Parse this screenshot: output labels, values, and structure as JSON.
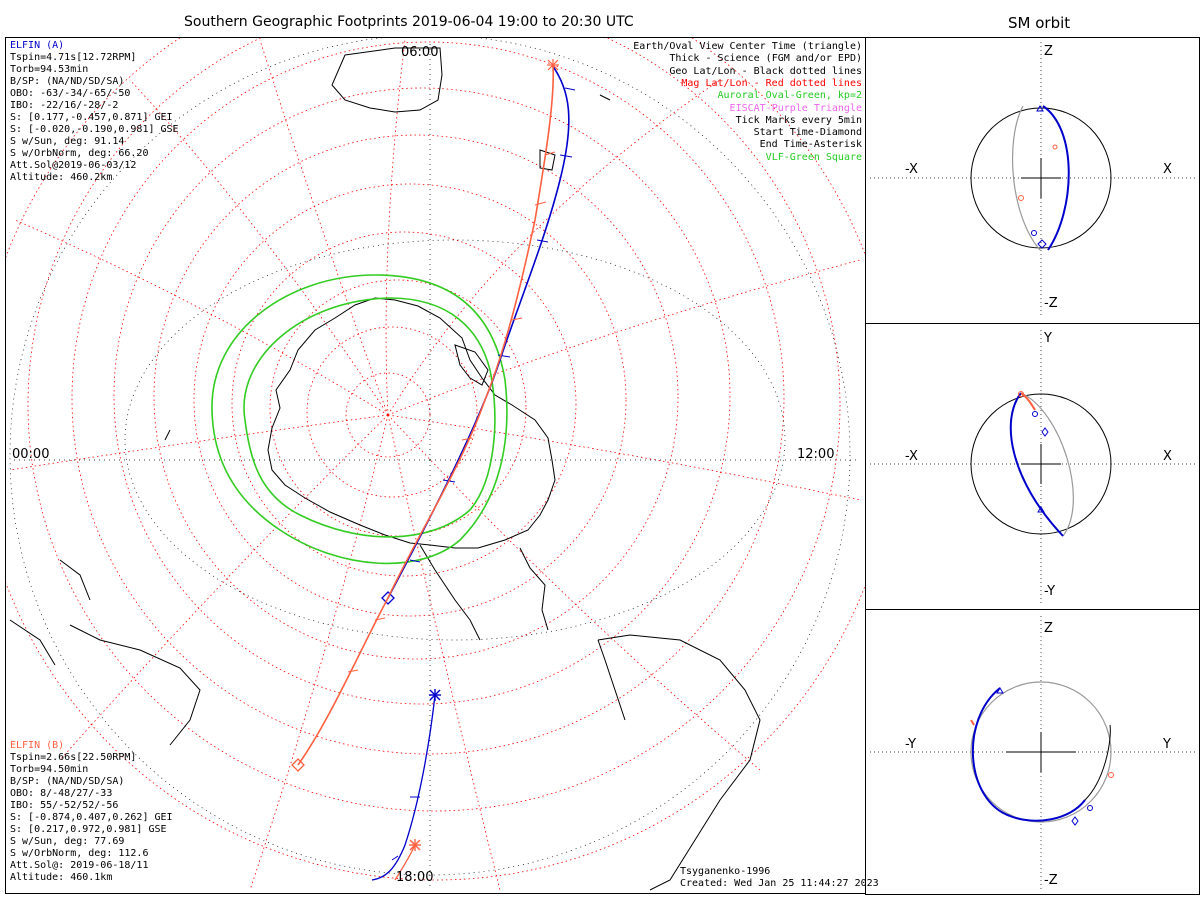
{
  "title": "Southern Geographic Footprints 2019-06-04 19:00 to 20:30 UTC",
  "sm_title": "SM orbit",
  "map_time_labels": {
    "top": "06:00",
    "left": "00:00",
    "right": "12:00",
    "bottom": "18:00"
  },
  "elfin_a": {
    "color": "#0000cc",
    "lines": [
      "ELFIN (A)",
      "Tspin=4.71s[12.72RPM]",
      "Torb=94.53min",
      "B/SP: (NA/ND/SD/SA)",
      "OBO: -63/-34/-65/-50",
      "IBO: -22/16/-28/-2",
      "S: [0.177,-0.457,0.871] GEI",
      "S: [-0.020,-0.190,0.981] GSE",
      "S w/Sun, deg: 91.14",
      "S w/OrbNorm, deg: 66.20",
      "Att.Sol@2019-06-03/12",
      "Altitude: 460.2km"
    ]
  },
  "elfin_b": {
    "color": "#ff6040",
    "lines": [
      "ELFIN (B)",
      "Tspin=2.66s[22.50RPM]",
      "Torb=94.50min",
      "B/SP: (NA/ND/SD/SA)",
      "OBO: 8/-48/27/-33",
      "IBO: 55/-52/52/-56",
      "S: [-0.874,0.407,0.262] GEI",
      "S: [0.217,0.972,0.981] GSE",
      "S w/Sun, deg: 77.69",
      "S w/OrbNorm, deg: 112.6",
      "Att.Sol@: 2019-06-18/11",
      "Altitude: 460.1km"
    ]
  },
  "legend": [
    {
      "text": "Earth/Oval View Center Time (triangle)",
      "color": "#000000"
    },
    {
      "text": "Thick - Science (FGM and/or EPD)",
      "color": "#000000"
    },
    {
      "text": "Geo Lat/Lon - Black dotted lines",
      "color": "#000000"
    },
    {
      "text": "Mag Lat/Lon - Red dotted lines",
      "color": "#ff0000"
    },
    {
      "text": "Auroral Oval-Green, kp=2",
      "color": "#22cc22"
    },
    {
      "text": "EISCAT-Purple Triangle",
      "color": "#ee66ee"
    },
    {
      "text": "Tick Marks every 5min",
      "color": "#000000"
    },
    {
      "text": "Start Time-Diamond",
      "color": "#000000"
    },
    {
      "text": "End Time-Asterisk",
      "color": "#000000"
    },
    {
      "text": "VLF-Green Square",
      "color": "#22cc22"
    }
  ],
  "credit": {
    "model": "Tsyganenko-1996",
    "created": "Created: Wed Jan 25 11:44:27 2023"
  },
  "panels": [
    {
      "top": "Z",
      "bottom": "-Z",
      "left": "-X",
      "right": "X"
    },
    {
      "top": "Y",
      "bottom": "-Y",
      "left": "-X",
      "right": "X"
    },
    {
      "top": "Z",
      "bottom": "-Z",
      "left": "-Y",
      "right": "Y"
    }
  ],
  "colors": {
    "elfin_a_track": "#0000cc",
    "elfin_b_track": "#ff6040",
    "mag_grid": "#ff0000",
    "auroral_oval": "#33cc22",
    "orbit_gray": "#999999"
  }
}
